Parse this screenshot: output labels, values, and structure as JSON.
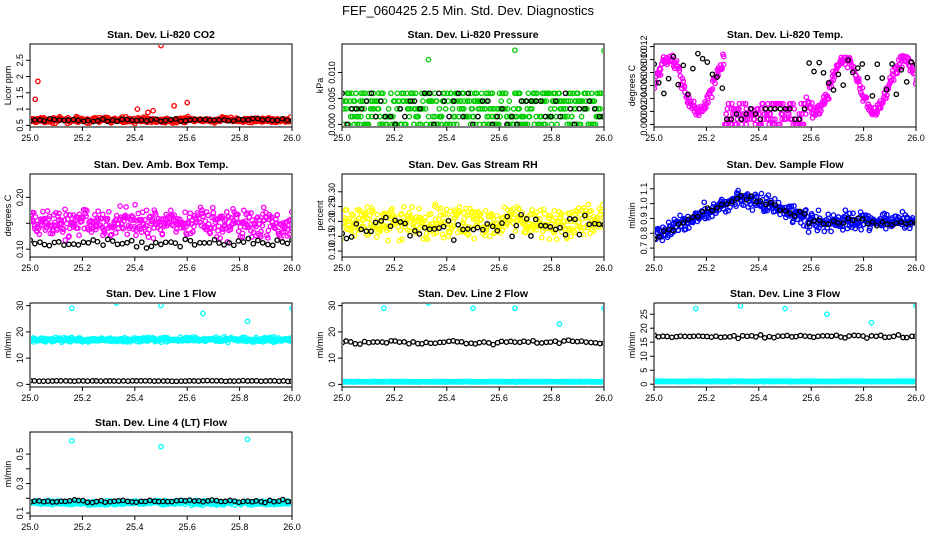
{
  "title": "FEF_060425  2.5 Min. Std. Dev. Diagnostics",
  "colors": {
    "black": "#000000",
    "red": "#ff0000",
    "green": "#00cc00",
    "magenta": "#ff00ff",
    "yellow": "#ffff00",
    "blue": "#0000ff",
    "cyan": "#00ffff"
  },
  "chart_data": [
    {
      "type": "scatter",
      "title": "Stan. Dev. Li-820 CO2",
      "ylabel": "Licor ppm",
      "xlabel": "",
      "xlim": [
        25.0,
        26.0
      ],
      "ylim": [
        0.45,
        3.0
      ],
      "xticks": [
        25.0,
        25.2,
        25.4,
        25.6,
        25.8,
        26.0
      ],
      "xtick_labels": [
        "25.0",
        "25.2",
        "25.4",
        "25.6",
        "25.8",
        "26.0"
      ],
      "yticks": [
        0.5,
        1.0,
        1.5,
        2.0,
        2.5
      ],
      "ytick_labels": [
        "0.5",
        "1",
        "1.5",
        "2",
        "2.5"
      ],
      "series": [
        {
          "name": "color",
          "color": "#ff0000",
          "n": 420,
          "base": 0.66,
          "spread": 0.12,
          "spikes": [
            [
              25.02,
              1.3
            ],
            [
              25.03,
              1.85
            ],
            [
              25.41,
              1.0
            ],
            [
              25.5,
              2.95
            ],
            [
              25.47,
              0.95
            ],
            [
              25.55,
              1.1
            ],
            [
              25.6,
              1.2
            ],
            [
              25.45,
              0.9
            ]
          ]
        },
        {
          "name": "black",
          "color": "#000000",
          "n": 55,
          "base": 0.66,
          "spread": 0.06,
          "spikes": []
        }
      ]
    },
    {
      "type": "scatter",
      "title": "Stan. Dev. Li-820 Pressure",
      "ylabel": "kPa",
      "xlabel": "",
      "xlim": [
        25.0,
        26.0
      ],
      "ylim": [
        -0.0005,
        0.0155
      ],
      "xticks": [
        25.0,
        25.2,
        25.4,
        25.6,
        25.8,
        26.0
      ],
      "xtick_labels": [
        "25.0",
        "25.2",
        "25.4",
        "25.6",
        "25.8",
        "26.0"
      ],
      "yticks": [
        0.0,
        0.005,
        0.01
      ],
      "ytick_labels": [
        "0.000",
        "0.005",
        "0.010"
      ],
      "series": [
        {
          "name": "color",
          "color": "#00cc00",
          "n": 420,
          "levels": [
            0.0,
            0.0015,
            0.003,
            0.0045,
            0.006
          ],
          "spikes": [
            [
              25.33,
              0.0125
            ],
            [
              25.66,
              0.0143
            ],
            [
              26.0,
              0.0142
            ]
          ]
        },
        {
          "name": "black",
          "color": "#000000",
          "n": 55,
          "levels": [
            0.0,
            0.0015,
            0.003,
            0.0045,
            0.006
          ],
          "spikes": []
        }
      ]
    },
    {
      "type": "scatter",
      "title": "Stan. Dev. Li-820 Temp.",
      "ylabel": "degrees C",
      "xlabel": "",
      "xlim": [
        25.0,
        26.0
      ],
      "ylim": [
        -0.0004,
        0.0124
      ],
      "xticks": [
        25.0,
        25.2,
        25.4,
        25.6,
        25.8,
        26.0
      ],
      "xtick_labels": [
        "25.0",
        "25.2",
        "25.4",
        "25.6",
        "25.8",
        "26.0"
      ],
      "yticks": [
        0.0,
        0.002,
        0.004,
        0.006,
        0.008,
        0.01,
        0.012
      ],
      "ytick_labels": [
        "0.000",
        "0.002",
        "0.004",
        "0.006",
        "0.008",
        "0.010",
        "0.012"
      ],
      "series": [
        {
          "name": "color",
          "color": "#ff00ff",
          "n": 420,
          "spikes": []
        },
        {
          "name": "black",
          "color": "#000000",
          "n": 55,
          "spikes": []
        }
      ]
    },
    {
      "type": "scatter",
      "title": "Stan. Dev. Amb. Box Temp.",
      "ylabel": "degrees C",
      "xlabel": "",
      "xlim": [
        25.0,
        26.0
      ],
      "ylim": [
        0.085,
        0.245
      ],
      "xticks": [
        25.0,
        25.2,
        25.4,
        25.6,
        25.8,
        26.0
      ],
      "xtick_labels": [
        "25.0",
        "25.2",
        "25.4",
        "25.6",
        "25.8",
        "26.0"
      ],
      "yticks": [
        0.1,
        0.15,
        0.2
      ],
      "ytick_labels": [
        "0.10",
        "",
        "0.20"
      ],
      "series": [
        {
          "name": "color",
          "color": "#ff00ff",
          "n": 420,
          "base": 0.15,
          "spread": 0.04,
          "spikes": []
        },
        {
          "name": "black",
          "color": "#000000",
          "n": 55,
          "base": 0.112,
          "spread": 0.012,
          "spikes": []
        }
      ]
    },
    {
      "type": "scatter",
      "title": "Stan. Dev. Gas Stream RH",
      "ylabel": "percent",
      "xlabel": "",
      "xlim": [
        25.0,
        26.0
      ],
      "ylim": [
        0.08,
        0.36
      ],
      "xticks": [
        25.0,
        25.2,
        25.4,
        25.6,
        25.8,
        26.0
      ],
      "xtick_labels": [
        "25.0",
        "25.2",
        "25.4",
        "25.6",
        "25.8",
        "26.0"
      ],
      "yticks": [
        0.1,
        0.15,
        0.2,
        0.25,
        0.3
      ],
      "ytick_labels": [
        "0.10",
        "0.15",
        "0.20",
        "0.25",
        "0.30"
      ],
      "series": [
        {
          "name": "color",
          "color": "#ffff00",
          "n": 420,
          "base": 0.2,
          "spread": 0.08,
          "spikes": []
        },
        {
          "name": "black",
          "color": "#000000",
          "n": 55,
          "base": 0.18,
          "spread": 0.06,
          "spikes": []
        }
      ]
    },
    {
      "type": "scatter",
      "title": "Stan. Dev. Sample Flow",
      "ylabel": "ml/min",
      "xlabel": "",
      "xlim": [
        25.0,
        26.0
      ],
      "ylim": [
        0.64,
        1.2
      ],
      "xticks": [
        25.0,
        25.2,
        25.4,
        25.6,
        25.8,
        26.0
      ],
      "xtick_labels": [
        "25.0",
        "25.2",
        "25.4",
        "25.6",
        "25.8",
        "26.0"
      ],
      "yticks": [
        0.7,
        0.8,
        0.9,
        1.0,
        1.1
      ],
      "ytick_labels": [
        "0.7",
        "0.8",
        "0.9",
        "1.0",
        "1.1"
      ],
      "series": [
        {
          "name": "color",
          "color": "#0000ff",
          "n": 420,
          "spikes": []
        },
        {
          "name": "black",
          "color": "#000000",
          "n": 55,
          "spikes": []
        }
      ]
    },
    {
      "type": "scatter",
      "title": "Stan. Dev. Line 1 Flow",
      "ylabel": "ml/min",
      "xlabel": "",
      "xlim": [
        25.0,
        26.0
      ],
      "ylim": [
        -1,
        31
      ],
      "xticks": [
        25.0,
        25.2,
        25.4,
        25.6,
        25.8,
        26.0
      ],
      "xtick_labels": [
        "25.0",
        "25.2",
        "25.4",
        "25.6",
        "25.8",
        "26.0"
      ],
      "yticks": [
        0,
        10,
        20,
        30
      ],
      "ytick_labels": [
        "0",
        "10",
        "20",
        "30"
      ],
      "series": [
        {
          "name": "color",
          "color": "#00ffff",
          "n": 420,
          "base": 17,
          "spread": 1.2,
          "spikes": [
            [
              25.16,
              29
            ],
            [
              25.33,
              31
            ],
            [
              25.5,
              30
            ],
            [
              25.66,
              27
            ],
            [
              25.83,
              24
            ],
            [
              26.0,
              29
            ]
          ]
        },
        {
          "name": "black",
          "color": "#000000",
          "n": 60,
          "base": 1.3,
          "spread": 0.2,
          "spikes": []
        }
      ]
    },
    {
      "type": "scatter",
      "title": "Stan. Dev. Line 2 Flow",
      "ylabel": "ml/min",
      "xlabel": "",
      "xlim": [
        25.0,
        26.0
      ],
      "ylim": [
        -1,
        31
      ],
      "xticks": [
        25.0,
        25.2,
        25.4,
        25.6,
        25.8,
        26.0
      ],
      "xtick_labels": [
        "25.0",
        "25.2",
        "25.4",
        "25.6",
        "25.8",
        "26.0"
      ],
      "yticks": [
        0,
        10,
        20,
        30
      ],
      "ytick_labels": [
        "0",
        "10",
        "20",
        "30"
      ],
      "series": [
        {
          "name": "color",
          "color": "#00ffff",
          "n": 420,
          "base": 1.0,
          "spread": 0.15,
          "spikes": [
            [
              25.16,
              29
            ],
            [
              25.33,
              31
            ],
            [
              25.5,
              29
            ],
            [
              25.66,
              29
            ],
            [
              25.83,
              23
            ],
            [
              26.0,
              29
            ]
          ]
        },
        {
          "name": "black",
          "color": "#000000",
          "n": 60,
          "base": 16,
          "spread": 1.2,
          "spikes": []
        }
      ]
    },
    {
      "type": "scatter",
      "title": "Stan. Dev. Line 3 Flow",
      "ylabel": "ml/min",
      "xlabel": "",
      "xlim": [
        25.0,
        26.0
      ],
      "ylim": [
        -1,
        29
      ],
      "xticks": [
        25.0,
        25.2,
        25.4,
        25.6,
        25.8,
        26.0
      ],
      "xtick_labels": [
        "25.0",
        "25.2",
        "25.4",
        "25.6",
        "25.8",
        "26.0"
      ],
      "yticks": [
        0,
        5,
        10,
        15,
        20,
        25
      ],
      "ytick_labels": [
        "0",
        "5",
        "10",
        "15",
        "20",
        "25"
      ],
      "series": [
        {
          "name": "color",
          "color": "#00ffff",
          "n": 420,
          "base": 1.0,
          "spread": 0.15,
          "spikes": [
            [
              25.16,
              27
            ],
            [
              25.33,
              28
            ],
            [
              25.5,
              27
            ],
            [
              25.66,
              25
            ],
            [
              25.83,
              22
            ],
            [
              26.0,
              28
            ]
          ]
        },
        {
          "name": "black",
          "color": "#000000",
          "n": 60,
          "base": 17,
          "spread": 1.0,
          "spikes": []
        }
      ]
    },
    {
      "type": "scatter",
      "title": "Stan. Dev. Line 4 (LT) Flow",
      "ylabel": "ml/min",
      "xlabel": "",
      "xlim": [
        25.0,
        26.0
      ],
      "ylim": [
        0.08,
        0.65
      ],
      "xticks": [
        25.0,
        25.2,
        25.4,
        25.6,
        25.8,
        26.0
      ],
      "xtick_labels": [
        "25.0",
        "25.2",
        "25.4",
        "25.6",
        "25.8",
        "26.0"
      ],
      "yticks": [
        0.1,
        0.2,
        0.3,
        0.4,
        0.5
      ],
      "ytick_labels": [
        "0.1",
        "",
        "0.3",
        "",
        "0.5"
      ],
      "series": [
        {
          "name": "color",
          "color": "#00ffff",
          "n": 420,
          "base": 0.17,
          "spread": 0.02,
          "spikes": [
            [
              25.16,
              0.59
            ],
            [
              25.5,
              0.55
            ],
            [
              25.83,
              0.6
            ]
          ]
        },
        {
          "name": "black",
          "color": "#000000",
          "n": 60,
          "base": 0.18,
          "spread": 0.015,
          "spikes": []
        }
      ]
    }
  ]
}
